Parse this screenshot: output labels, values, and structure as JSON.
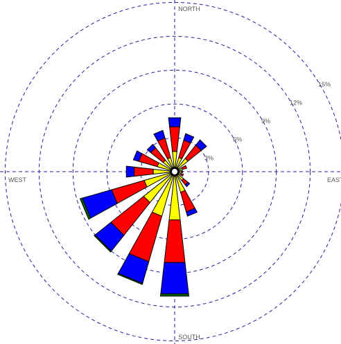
{
  "chart_data": {
    "type": "wind-rose",
    "direction_labels": {
      "north": "NORTH",
      "east": "EAST",
      "south": "SOUTH",
      "west": "WEST"
    },
    "ring_labels": [
      "3%",
      "6%",
      "9%",
      "12%",
      "15%"
    ],
    "rings": [
      3,
      6,
      9,
      12,
      15
    ],
    "max_percent": 15,
    "colors": [
      "#ffff00",
      "#ff0000",
      "#0000ff",
      "#006400"
    ],
    "directions_deg": [
      0,
      22.5,
      45,
      67.5,
      90,
      112.5,
      135,
      157.5,
      180,
      202.5,
      225,
      247.5,
      270,
      292.5,
      315,
      337.5
    ],
    "frequencies": [
      [
        1.5,
        2.2,
        0.8,
        0.0
      ],
      [
        1.0,
        1.6,
        0.6,
        0.0
      ],
      [
        1.2,
        1.5,
        0.6,
        0.0
      ],
      [
        0.4,
        0.4,
        0.0,
        0.0
      ],
      [
        0.3,
        0.1,
        0.0,
        0.0
      ],
      [
        0.3,
        0.2,
        0.0,
        0.0
      ],
      [
        0.7,
        0.5,
        0.2,
        0.0
      ],
      [
        1.6,
        1.8,
        0.4,
        0.0
      ],
      [
        4.0,
        3.8,
        2.8,
        0.2
      ],
      [
        3.8,
        4.2,
        2.0,
        0.1
      ],
      [
        3.2,
        3.7,
        1.8,
        0.1
      ],
      [
        2.5,
        3.0,
        2.7,
        0.2
      ],
      [
        1.6,
        1.7,
        0.7,
        0.0
      ],
      [
        1.3,
        1.7,
        0.5,
        0.0
      ],
      [
        1.0,
        1.4,
        0.4,
        0.0
      ],
      [
        1.0,
        1.8,
        0.7,
        0.0
      ]
    ]
  }
}
